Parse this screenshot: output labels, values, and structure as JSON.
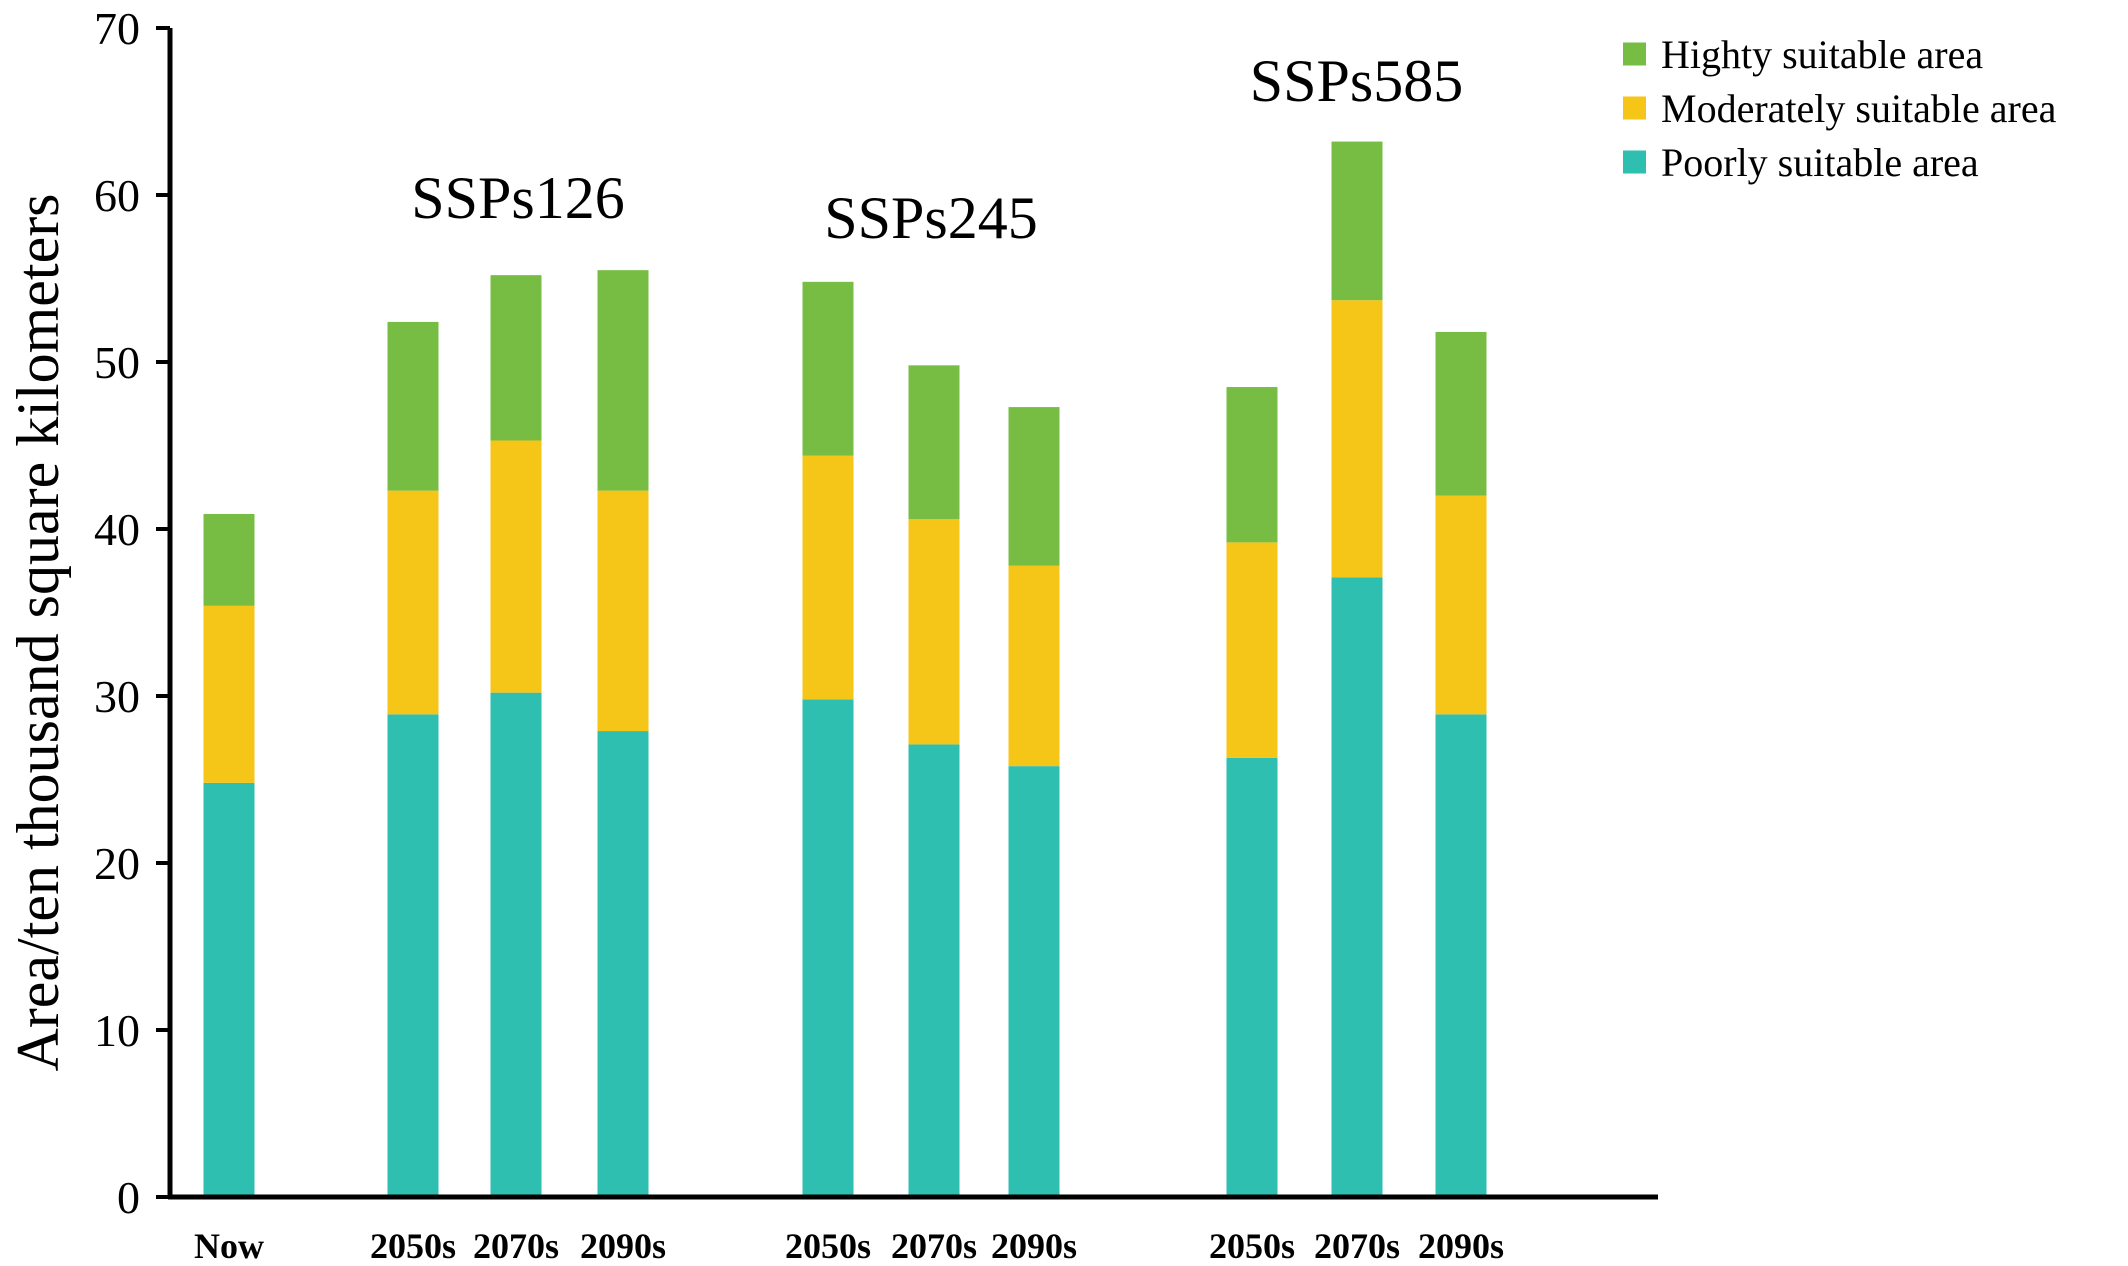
{
  "chart_data": {
    "type": "bar",
    "stacked": true,
    "title": "",
    "xlabel": "",
    "ylabel": "Area/ten thousand square kilometers",
    "ylim": [
      0,
      70
    ],
    "yticks": [
      0,
      10,
      20,
      30,
      40,
      50,
      60,
      70
    ],
    "grid": false,
    "legend_position": "top-right",
    "categories": [
      "Now",
      "2050s",
      "2070s",
      "2090s",
      "2050s",
      "2070s",
      "2090s",
      "2050s",
      "2070s",
      "2090s"
    ],
    "groups": [
      {
        "label": "",
        "members": [
          0
        ]
      },
      {
        "label": "SSPs126",
        "members": [
          1,
          2,
          3
        ]
      },
      {
        "label": "SSPs245",
        "members": [
          4,
          5,
          6
        ]
      },
      {
        "label": "SSPs585",
        "members": [
          7,
          8,
          9
        ]
      }
    ],
    "series": [
      {
        "name": "Poorly suitable area",
        "color": "#2ebfb1",
        "values": [
          24.8,
          28.9,
          30.2,
          27.9,
          29.8,
          27.1,
          25.8,
          26.3,
          37.1,
          28.9
        ]
      },
      {
        "name": "Moderately suitable area",
        "color": "#f5c518",
        "values": [
          10.6,
          13.4,
          15.1,
          14.4,
          14.6,
          13.5,
          12.0,
          12.9,
          16.6,
          13.1
        ]
      },
      {
        "name": "Highty suitable area",
        "color": "#77bc43",
        "values": [
          5.5,
          10.1,
          9.9,
          13.2,
          10.4,
          9.2,
          9.5,
          9.3,
          9.5,
          9.8
        ]
      }
    ],
    "legend_order": [
      2,
      1,
      0
    ]
  }
}
